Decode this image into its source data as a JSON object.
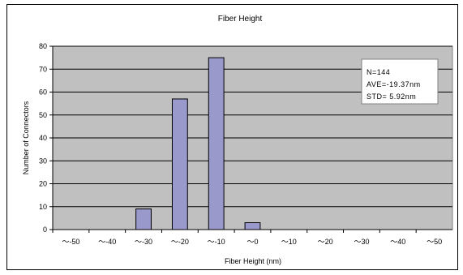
{
  "chart_data": {
    "type": "bar",
    "title": "Fiber Height",
    "xlabel": "Fiber Height (nm)",
    "ylabel": "Number of Connectors",
    "categories": [
      "～-50",
      "～-40",
      "～-30",
      "～-20",
      "～-10",
      "～0",
      "～10",
      "～20",
      "～30",
      "～40",
      "～50"
    ],
    "values": [
      0,
      0,
      9,
      57,
      75,
      3,
      0,
      0,
      0,
      0,
      0
    ],
    "ylim": [
      0,
      80
    ],
    "yticks": [
      0,
      10,
      20,
      30,
      40,
      50,
      60,
      70,
      80
    ],
    "grid": true,
    "legend": "none",
    "bar_color": "#9999cc",
    "plot_bg": "#c0c0c0",
    "annotation": [
      "N=144",
      "AVE=-19.37nm",
      "STD= 5.92nm"
    ]
  }
}
